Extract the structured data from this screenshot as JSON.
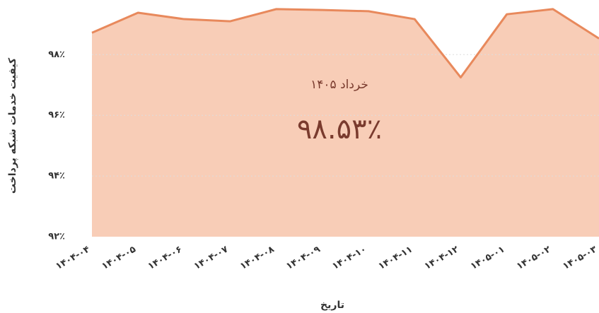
{
  "chart_data": {
    "type": "area",
    "x_label": "تاریخ",
    "y_label": "کیفیت خدمات شبکه پرداخت",
    "annotation_title": "خرداد ۱۴۰۵",
    "annotation_value": "۹۸.۵۳٪",
    "categories": [
      "۱۴۰۴-۰۴",
      "۱۴۰۴-۰۵",
      "۱۴۰۴-۰۶",
      "۱۴۰۴-۰۷",
      "۱۴۰۴-۰۸",
      "۱۴۰۴-۰۹",
      "۱۴۰۴-۱۰",
      "۱۴۰۴-۱۱",
      "۱۴۰۴-۱۲",
      "۱۴۰۵-۰۱",
      "۱۴۰۵-۰۲",
      "۱۴۰۵-۰۳"
    ],
    "values": [
      98.72,
      99.38,
      99.17,
      99.1,
      99.5,
      99.47,
      99.43,
      99.17,
      97.25,
      99.33,
      99.5,
      98.53
    ],
    "color": "#e8895c",
    "fill": "#f8cdb7",
    "ylim": [
      92,
      99.8
    ],
    "yticks": [
      {
        "value": 92,
        "label": "۹۲٪"
      },
      {
        "value": 94,
        "label": "۹۴٪"
      },
      {
        "value": 96,
        "label": "۹۶٪"
      },
      {
        "value": 98,
        "label": "۹۸٪"
      }
    ],
    "grid": true
  }
}
